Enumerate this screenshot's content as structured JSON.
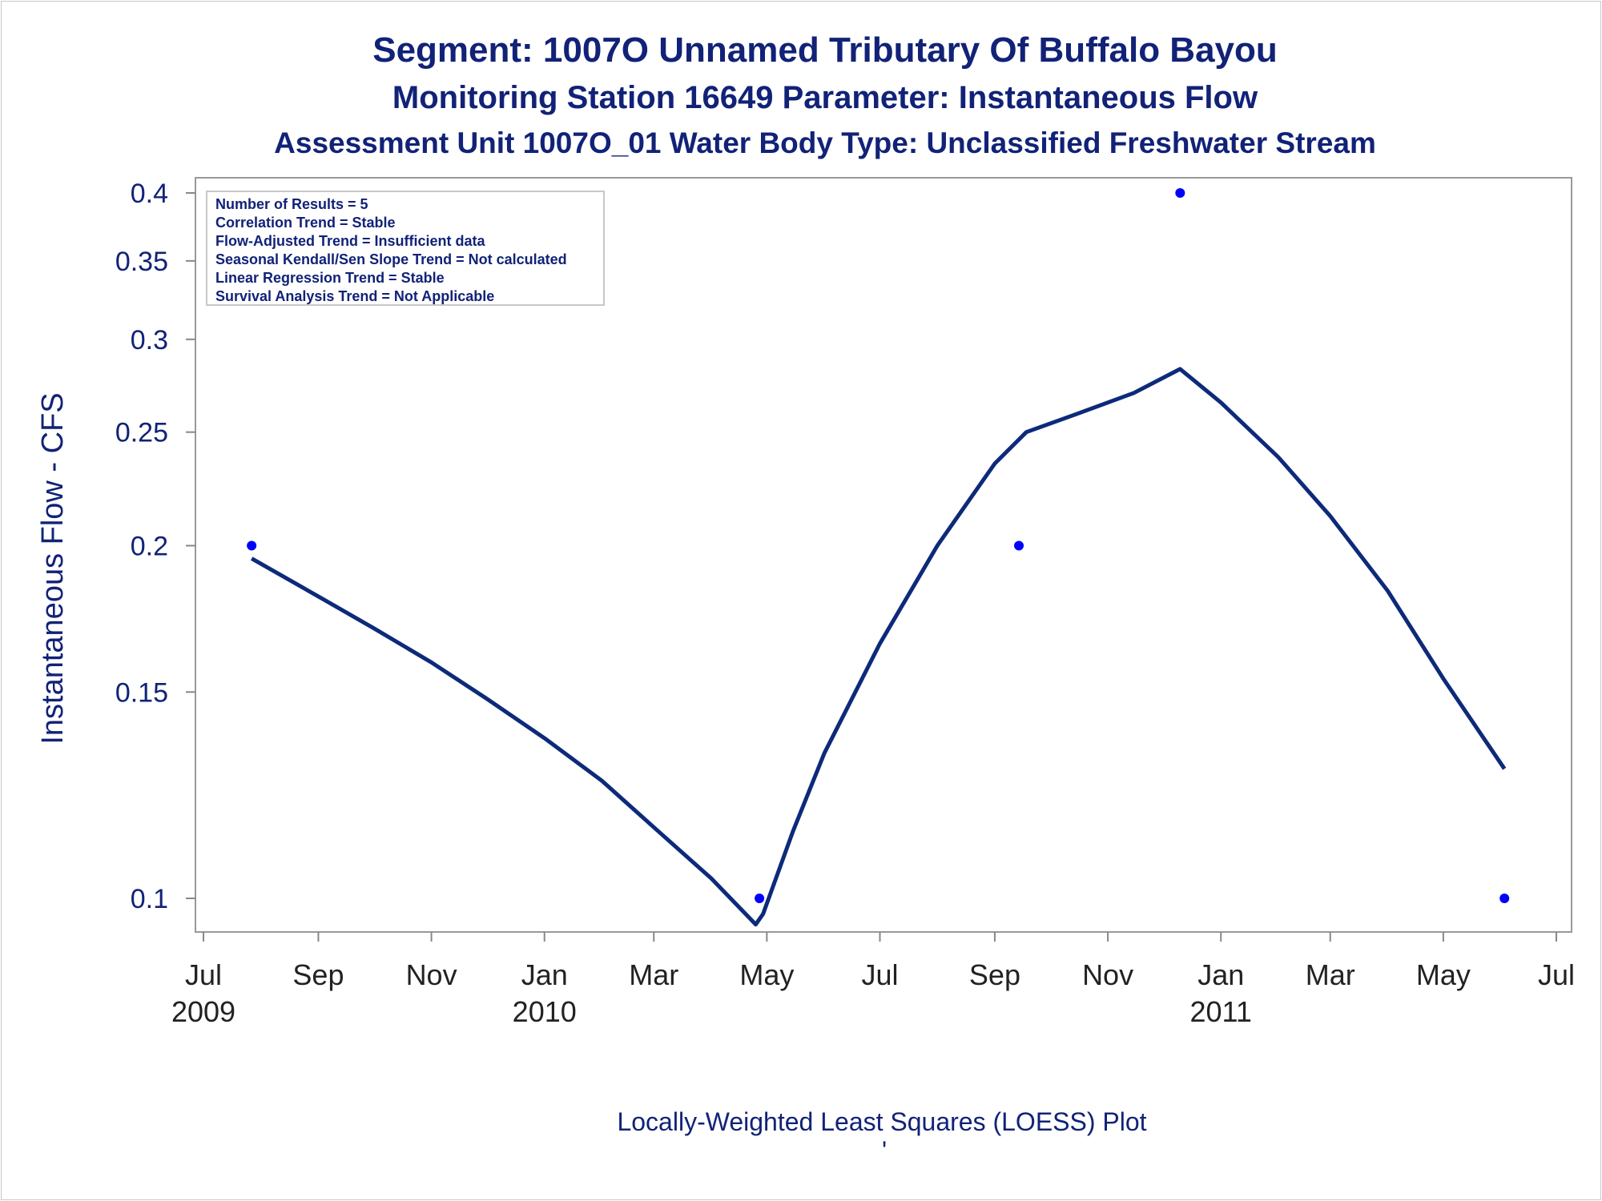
{
  "titles": {
    "line1": "Segment: 1007O  Unnamed Tributary Of Buffalo Bayou",
    "line2": "Monitoring Station 16649 Parameter: Instantaneous Flow",
    "line3": "Assessment Unit 1007O_01   Water Body Type: Unclassified Freshwater Stream"
  },
  "stats_box": [
    "Number of Results = 5",
    "Correlation Trend = Stable",
    "Flow-Adjusted Trend = Insufficient data",
    "Seasonal Kendall/Sen Slope Trend = Not calculated",
    "Linear Regression Trend = Stable",
    "Survival Analysis Trend = Not Applicable"
  ],
  "footnote": "Locally-Weighted Least Squares (LOESS) Plot",
  "footnote2": "'",
  "colors": {
    "title": "#112277",
    "line": "#0d2a7a",
    "points": "#0000ff",
    "axis": "#888888"
  },
  "chart_data": {
    "type": "scatter",
    "title": "Segment: 1007O  Unnamed Tributary Of Buffalo Bayou",
    "xlabel": "",
    "ylabel": "Instantaneous Flow - CFS",
    "yscale": "log",
    "ylim": [
      0.095,
      0.4
    ],
    "xlim": [
      "2009-07-01",
      "2011-07-01"
    ],
    "yticks": [
      0.1,
      0.15,
      0.2,
      0.25,
      0.3,
      0.35,
      0.4
    ],
    "ytick_labels": [
      "0.1",
      "0.15",
      "0.2",
      "0.25",
      "0.3",
      "0.35",
      "0.4"
    ],
    "xticks": [
      {
        "date": "2009-07-01",
        "label": "Jul",
        "year": "2009"
      },
      {
        "date": "2009-09-01",
        "label": "Sep",
        "year": ""
      },
      {
        "date": "2009-11-01",
        "label": "Nov",
        "year": ""
      },
      {
        "date": "2010-01-01",
        "label": "Jan",
        "year": "2010"
      },
      {
        "date": "2010-03-01",
        "label": "Mar",
        "year": ""
      },
      {
        "date": "2010-05-01",
        "label": "May",
        "year": ""
      },
      {
        "date": "2010-07-01",
        "label": "Jul",
        "year": ""
      },
      {
        "date": "2010-09-01",
        "label": "Sep",
        "year": ""
      },
      {
        "date": "2010-11-01",
        "label": "Nov",
        "year": ""
      },
      {
        "date": "2011-01-01",
        "label": "Jan",
        "year": "2011"
      },
      {
        "date": "2011-03-01",
        "label": "Mar",
        "year": ""
      },
      {
        "date": "2011-05-01",
        "label": "May",
        "year": ""
      },
      {
        "date": "2011-07-01",
        "label": "Jul",
        "year": ""
      }
    ],
    "points": [
      {
        "x": "2009-07-27",
        "y": 0.2
      },
      {
        "x": "2010-04-27",
        "y": 0.1
      },
      {
        "x": "2010-09-14",
        "y": 0.2
      },
      {
        "x": "2010-12-10",
        "y": 0.4
      },
      {
        "x": "2011-06-03",
        "y": 0.1
      }
    ],
    "loess": [
      {
        "x": "2009-07-27",
        "y": 0.195
      },
      {
        "x": "2009-09-01",
        "y": 0.181
      },
      {
        "x": "2009-10-01",
        "y": 0.17
      },
      {
        "x": "2009-11-01",
        "y": 0.159
      },
      {
        "x": "2009-12-01",
        "y": 0.148
      },
      {
        "x": "2010-01-01",
        "y": 0.137
      },
      {
        "x": "2010-02-01",
        "y": 0.126
      },
      {
        "x": "2010-03-01",
        "y": 0.115
      },
      {
        "x": "2010-04-01",
        "y": 0.104
      },
      {
        "x": "2010-04-25",
        "y": 0.095
      },
      {
        "x": "2010-04-29",
        "y": 0.097
      },
      {
        "x": "2010-05-15",
        "y": 0.114
      },
      {
        "x": "2010-06-01",
        "y": 0.133
      },
      {
        "x": "2010-07-01",
        "y": 0.165
      },
      {
        "x": "2010-08-01",
        "y": 0.2
      },
      {
        "x": "2010-09-01",
        "y": 0.235
      },
      {
        "x": "2010-09-18",
        "y": 0.25
      },
      {
        "x": "2010-10-15",
        "y": 0.259
      },
      {
        "x": "2010-11-15",
        "y": 0.27
      },
      {
        "x": "2010-12-10",
        "y": 0.283
      },
      {
        "x": "2011-01-01",
        "y": 0.265
      },
      {
        "x": "2011-02-01",
        "y": 0.238
      },
      {
        "x": "2011-03-01",
        "y": 0.212
      },
      {
        "x": "2011-04-01",
        "y": 0.183
      },
      {
        "x": "2011-05-01",
        "y": 0.154
      },
      {
        "x": "2011-06-03",
        "y": 0.129
      }
    ]
  }
}
